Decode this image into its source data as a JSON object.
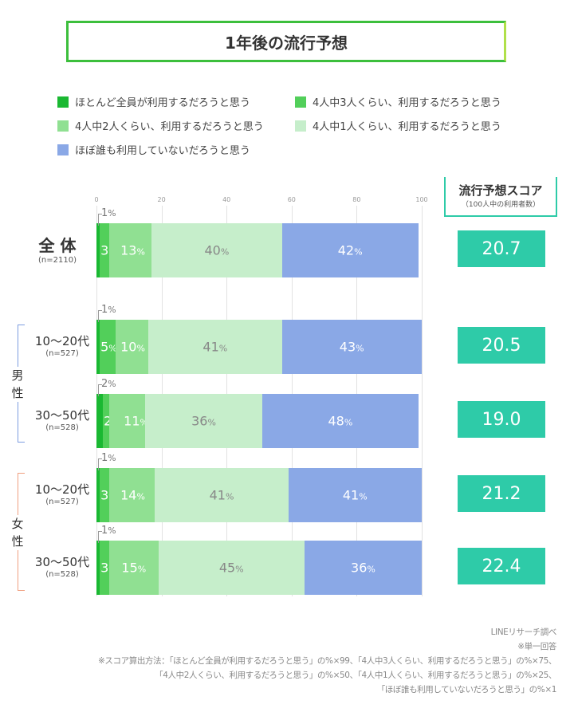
{
  "title": "1年後の流行予想",
  "chart_data": {
    "type": "bar",
    "orientation": "horizontal-stacked",
    "xlim": [
      0,
      100
    ],
    "ticks": [
      "0",
      "20",
      "40",
      "60",
      "80",
      "100"
    ],
    "grid": true,
    "legend": {
      "placement": "top",
      "entries": [
        "ほとんど全員が利用するだろうと思う",
        "4人中3人くらい、利用するだろうと思う",
        "4人中2人くらい、利用するだろうと思う",
        "4人中1人くらい、利用するだろうと思う",
        "ほぼ誰も利用していないだろうと思う"
      ]
    },
    "colors": [
      "#1ab832",
      "#52cf5a",
      "#90e092",
      "#c6eecb",
      "#8aa8e6"
    ],
    "unit": "%",
    "rows": [
      {
        "label": "全 体",
        "n": "(n=2110)",
        "values": [
          1,
          3,
          13,
          40,
          42
        ],
        "score": "20.7"
      },
      {
        "group": "男性",
        "label": "10〜20代",
        "n": "(n=527)",
        "values": [
          1,
          5,
          10,
          41,
          43
        ],
        "score": "20.5"
      },
      {
        "group": "男性",
        "label": "30〜50代",
        "n": "(n=528)",
        "values": [
          2,
          2,
          11,
          36,
          48
        ],
        "score": "19.0"
      },
      {
        "group": "女性",
        "label": "10〜20代",
        "n": "(n=527)",
        "values": [
          1,
          3,
          14,
          41,
          41
        ],
        "score": "21.2"
      },
      {
        "group": "女性",
        "label": "30〜50代",
        "n": "(n=528)",
        "values": [
          1,
          3,
          15,
          45,
          36
        ],
        "score": "22.4"
      }
    ]
  },
  "groups": {
    "male": "男性",
    "female": "女性"
  },
  "score_header": {
    "title": "流行予想スコア",
    "subtitle": "（100人中の利用者数）"
  },
  "footnotes": [
    "LINEリサーチ調べ",
    "※単一回答",
    "※スコア算出方法：「ほとんど全員が利用するだろうと思う」の%×99、「4人中3人くらい、利用するだろうと思う」の%×75、",
    "「4人中2人くらい、利用するだろうと思う」の%×50、「4人中1人くらい、利用するだろうと思う」の%×25、",
    "「ほぼ誰も利用していないだろうと思う」の%×1"
  ]
}
